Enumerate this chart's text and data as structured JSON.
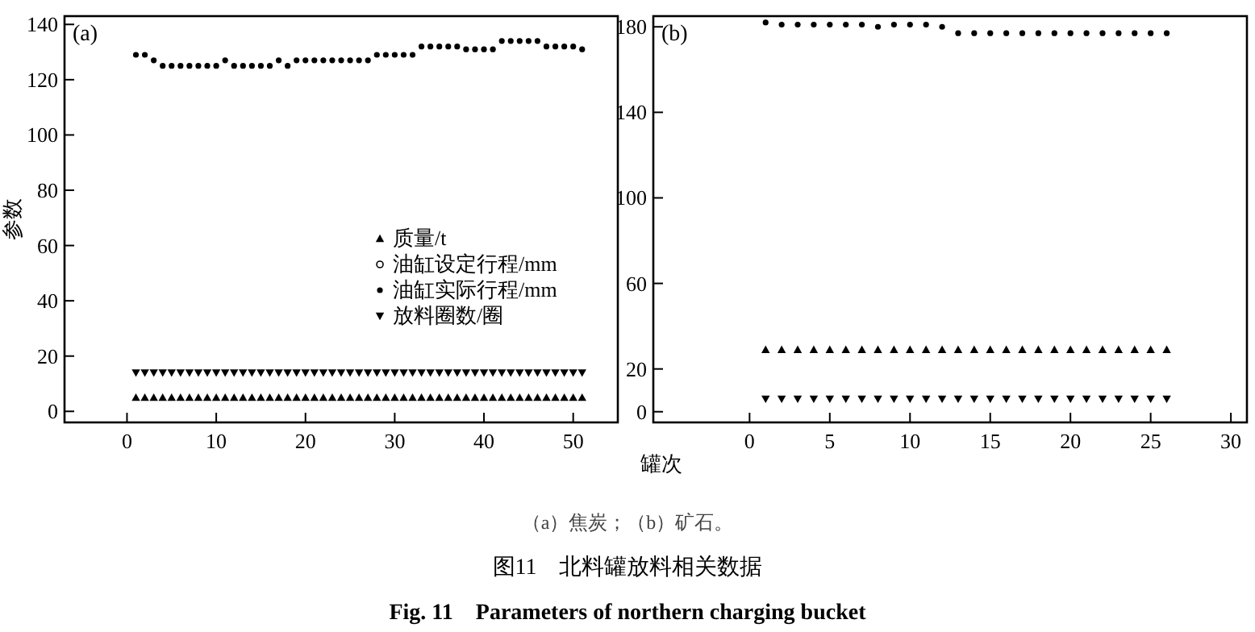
{
  "chart_data": [
    {
      "type": "scatter",
      "title": "(a)",
      "xlabel": "罐次",
      "ylabel": "参数",
      "legend": "right",
      "annotations": [
        "（a）焦炭；（b）矿石。",
        "图11　北料罐放料相关数据",
        "Fig. 11　Parameters of  northern charging bucket"
      ],
      "x": [
        1,
        2,
        3,
        4,
        5,
        6,
        7,
        8,
        9,
        10,
        11,
        12,
        13,
        14,
        15,
        16,
        17,
        18,
        19,
        20,
        21,
        22,
        23,
        24,
        25,
        26,
        27,
        28,
        29,
        30,
        31,
        32,
        33,
        34,
        35,
        36,
        37,
        38,
        39,
        40,
        41,
        42,
        43,
        44,
        45,
        46,
        47,
        48,
        49,
        50,
        51
      ],
      "xlim": [
        -7,
        55
      ],
      "xticks": [
        0,
        10,
        20,
        30,
        40,
        50
      ],
      "ylim": [
        -4,
        143
      ],
      "yticks": [
        0,
        20,
        40,
        60,
        80,
        100,
        120,
        140
      ],
      "series": [
        {
          "name": "质量/t",
          "color": "#000000",
          "marker": "triangle",
          "values": [
            5,
            5,
            5,
            5,
            5,
            5,
            5,
            5,
            5,
            5,
            5,
            5,
            5,
            5,
            5,
            5,
            5,
            5,
            5,
            5,
            5,
            5,
            5,
            5,
            5,
            5,
            5,
            5,
            5,
            5,
            5,
            5,
            5,
            5,
            5,
            5,
            5,
            5,
            5,
            5,
            5,
            5,
            5,
            5,
            5,
            5,
            5,
            5,
            5,
            5,
            5
          ]
        },
        {
          "name": "油缸设定行程/mm",
          "color": "#000000",
          "marker": "circle",
          "values": [
            null,
            null,
            null,
            null,
            null,
            null,
            null,
            null,
            null,
            null,
            null,
            null,
            null,
            null,
            null,
            null,
            null,
            null,
            null,
            null,
            null,
            null,
            null,
            null,
            null,
            null,
            null,
            null,
            null,
            null,
            null,
            null,
            null,
            null,
            null,
            null,
            null,
            null,
            null,
            null,
            null,
            null,
            null,
            null,
            null,
            null,
            null,
            null,
            null,
            null,
            null
          ]
        },
        {
          "name": "油缸实际行程/mm",
          "color": "#000000",
          "marker": "circle",
          "values": [
            129,
            129,
            127,
            125,
            125,
            125,
            125,
            125,
            125,
            125,
            127,
            125,
            125,
            125,
            125,
            125,
            127,
            125,
            127,
            127,
            127,
            127,
            127,
            127,
            127,
            127,
            127,
            129,
            129,
            129,
            129,
            129,
            132,
            132,
            132,
            132,
            132,
            131,
            131,
            131,
            131,
            134,
            134,
            134,
            134,
            134,
            132,
            132,
            132,
            132,
            131
          ]
        },
        {
          "name": "放料圈数/圈",
          "color": "#000000",
          "marker": "triangle-down",
          "values": [
            14,
            14,
            14,
            14,
            14,
            14,
            14,
            14,
            14,
            14,
            14,
            14,
            14,
            14,
            14,
            14,
            14,
            14,
            14,
            14,
            14,
            14,
            14,
            14,
            14,
            14,
            14,
            14,
            14,
            14,
            14,
            14,
            14,
            14,
            14,
            14,
            14,
            14,
            14,
            14,
            14,
            14,
            14,
            14,
            14,
            14,
            14,
            14,
            14,
            14,
            14
          ]
        }
      ]
    },
    {
      "type": "scatter",
      "title": "(b)",
      "x": [
        1,
        2,
        3,
        4,
        5,
        6,
        7,
        8,
        9,
        10,
        11,
        12,
        13,
        14,
        15,
        16,
        17,
        18,
        19,
        20,
        21,
        22,
        23,
        24,
        25,
        26
      ],
      "xlim": [
        -6,
        31
      ],
      "xticks": [
        0,
        5,
        10,
        15,
        20,
        25,
        30
      ],
      "ylim": [
        -5,
        185
      ],
      "yticks": [
        0,
        20,
        60,
        100,
        140,
        180
      ],
      "series": [
        {
          "color": "#000000",
          "marker": "triangle",
          "values": [
            29,
            29,
            29,
            29,
            29,
            29,
            29,
            29,
            29,
            29,
            29,
            29,
            29,
            29,
            29,
            29,
            29,
            29,
            29,
            29,
            29,
            29,
            29,
            29,
            29,
            29
          ]
        },
        {
          "color": "#000000",
          "marker": "circle",
          "values": [
            182,
            181,
            181,
            181,
            181,
            181,
            181,
            180,
            181,
            181,
            181,
            180,
            177,
            177,
            177,
            177,
            177,
            177,
            177,
            177,
            177,
            177,
            177,
            177,
            177,
            177
          ]
        },
        {
          "color": "#000000",
          "marker": "triangle-down",
          "values": [
            6,
            6,
            6,
            6,
            6,
            6,
            6,
            6,
            6,
            6,
            6,
            6,
            6,
            6,
            6,
            6,
            6,
            6,
            6,
            6,
            6,
            6,
            6,
            6,
            6,
            6
          ]
        }
      ]
    }
  ]
}
